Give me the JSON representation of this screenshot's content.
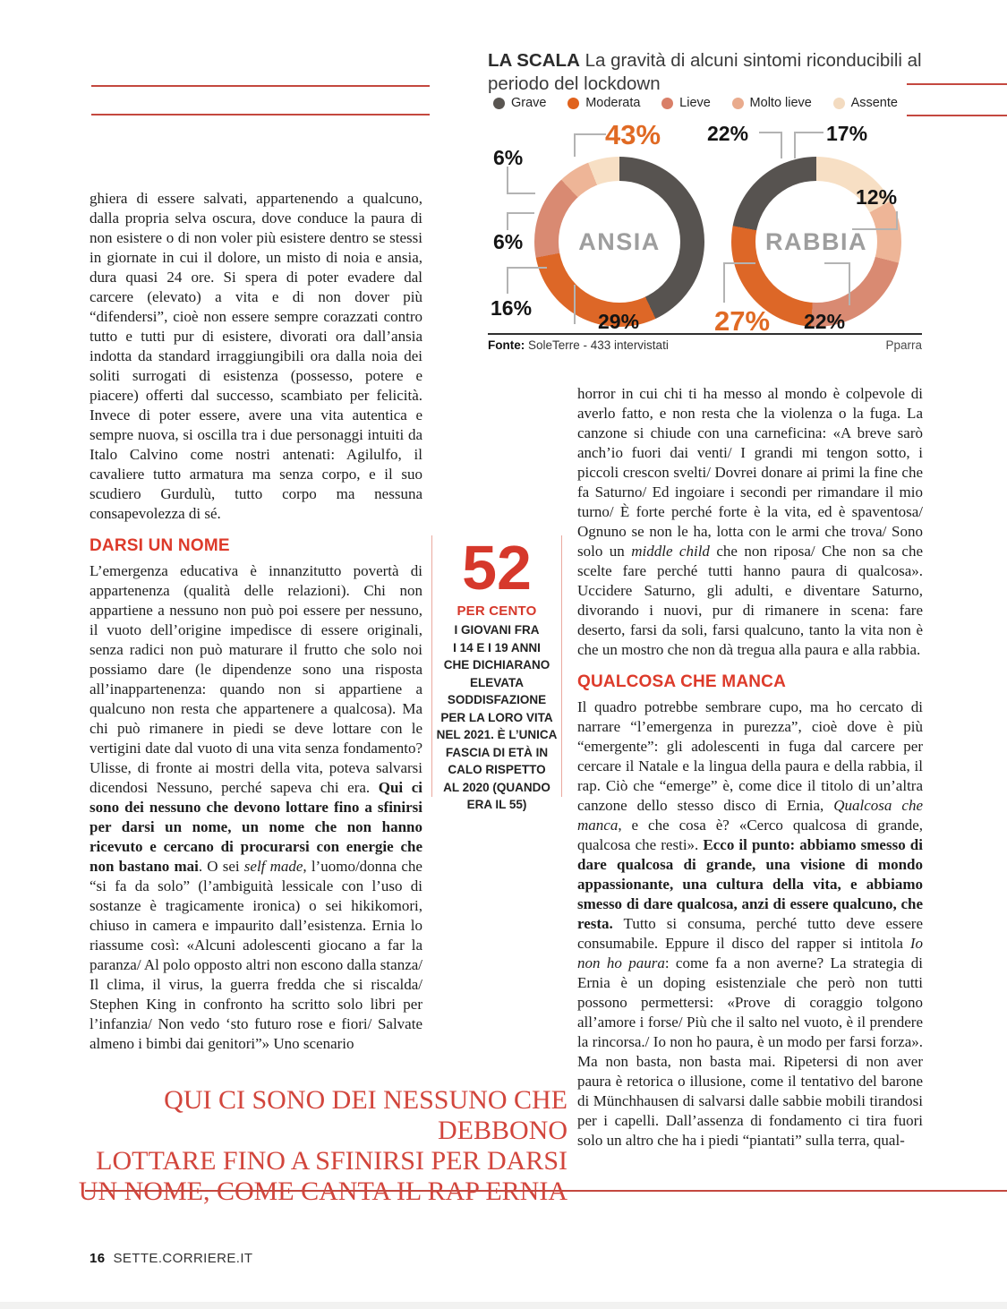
{
  "chart": {
    "title": "LA SCALA",
    "subtitle": "La gravità di alcuni sintomi riconducibili al periodo del lockdown",
    "legend": [
      {
        "label": "Grave",
        "color": "#595551"
      },
      {
        "label": "Moderata",
        "color": "#e0621c"
      },
      {
        "label": "Lieve",
        "color": "#d97f68"
      },
      {
        "label": "Molto lieve",
        "color": "#e9ab8d"
      },
      {
        "label": "Assente",
        "color": "#f3dbc0"
      }
    ],
    "source_label": "Fonte:",
    "source_text": " SoleTerre - 433 intervistati",
    "credit": "Pparra",
    "donut_labels": {
      "ansia": [
        "43%",
        "6%",
        "6%",
        "16%",
        "29%"
      ],
      "rabbia": [
        "22%",
        "17%",
        "12%",
        "22%",
        "27%"
      ]
    }
  },
  "chart_data": [
    {
      "type": "pie",
      "subtype": "donut",
      "title": "ANSIA",
      "categories": [
        "Grave",
        "Moderata",
        "Lieve",
        "Molto lieve",
        "Assente"
      ],
      "values": [
        43,
        29,
        16,
        6,
        6
      ],
      "colors": [
        "#575350",
        "#dd6727",
        "#d98a72",
        "#eeb597",
        "#f7dfc4"
      ],
      "clockwise_from_top": [
        "Grave",
        "Moderata",
        "Lieve",
        "Molto lieve",
        "Assente"
      ],
      "highlighted_value": "43%"
    },
    {
      "type": "pie",
      "subtype": "donut",
      "title": "RABBIA",
      "categories": [
        "Grave",
        "Moderata",
        "Lieve",
        "Molto lieve",
        "Assente"
      ],
      "values": [
        22,
        27,
        22,
        12,
        17
      ],
      "colors": [
        "#575350",
        "#dd6727",
        "#d98a72",
        "#eeb597",
        "#f7dfc4"
      ],
      "clockwise_from_top": [
        "Assente",
        "Molto lieve",
        "Lieve",
        "Moderata",
        "Grave"
      ],
      "highlighted_value": "27%"
    }
  ],
  "article": {
    "left_col": {
      "para1_runs": [
        {
          "t": "ghiera di essere salvati, appartenendo a qualcuno, dalla propria selva oscura, dove conduce la paura di non esistere o di non voler più esistere dentro se stessi in giornate in cui il dolore, un misto di noia e ansia, dura quasi 24 ore. Si spera di poter evadere dal carcere (elevato) a vita e di non dover più “difendersi”, cioè non essere sempre corazzati contro tutto e tutti pur di esistere, divorati ora dall’ansia indotta da standard irraggiungibili ora dalla noia dei soliti surrogati di esistenza (possesso, potere e piacere) offerti dal successo, scambiato per felicità. Invece di poter essere, avere una vita autentica e sempre nuova, si oscilla tra i due personaggi intuiti da Italo Calvino come nostri antenati: Agilulfo, il cavaliere tutto armatura ma senza corpo, e il suo scudiero Gurdulù, tutto corpo ma nessuna consapevolezza di sé."
        }
      ],
      "heading1": "DARSI UN NOME",
      "para2_runs": [
        {
          "t": "L’emergenza educativa è innanzitutto povertà di appartenenza (qualità delle relazioni). Chi non appartiene a nessuno non può poi essere per nessuno, il vuoto dell’origine impedisce di essere originali, senza radici non può maturare il frutto che solo noi possiamo dare (le dipendenze sono una risposta all’inappartenenza: quando non si appartiene a qualcuno non resta che appartenere a qualcosa). Ma chi può rimanere in piedi se deve lottare con le vertigini date dal vuoto di una vita senza fondamento? Ulisse, di fronte ai mostri della vita, poteva salvarsi dicendosi Nessuno, perché sapeva chi era. "
        },
        {
          "t": "Qui ci sono dei nessuno che devono lottare fino a sfinirsi per darsi un nome, un nome che non hanno ricevuto e cercano di procurarsi con energie che non bastano mai",
          "s": "b"
        },
        {
          "t": ". O sei "
        },
        {
          "t": "self made",
          "s": "i"
        },
        {
          "t": ", l’uomo/donna che “si fa da solo” (l’ambiguità lessicale con l’uso di sostanze è tragicamente ironica) o sei hikikomori, chiuso in camera e impaurito dall’esistenza. Ernia lo riassume così: «Alcuni adolescenti giocano a far la paranza/ Al polo opposto altri non escono dalla stanza/ Il clima, il virus, la guerra fredda che si riscalda/ Stephen King in confronto ha scritto solo libri per l’infanzia/ Non vedo ‘sto futuro rose e fiori/ Salvate almeno i bimbi dai genitori”» Uno scenario"
        }
      ]
    },
    "right_col": {
      "para1_runs": [
        {
          "t": "horror in cui chi ti ha messo al mondo è colpevole di averlo fatto, e non resta che la violenza o la fuga. La canzone si chiude con una carneficina: «A breve sarò anch’io fuori dai venti/ I grandi mi tengon sotto, i piccoli crescon svelti/ Dovrei donare ai primi la fine che fa Saturno/ Ed ingoiare i secondi per rimandare il mio turno/ È forte perché forte è la vita, ed è spaventosa/ Ognuno se non le ha, lotta con le armi che trova/ Sono solo un "
        },
        {
          "t": "middle child",
          "s": "i"
        },
        {
          "t": " che non riposa/ Che non sa che scelte fare perché tutti hanno paura di qualcosa». Uccidere Saturno, gli adulti, e diventare Saturno, divorando i nuovi, pur di rimanere in scena: fare deserto, farsi da soli, farsi qualcuno, tanto la vita non è che un mostro che non dà tregua alla paura e alla rabbia."
        }
      ],
      "heading2": "QUALCOSA CHE MANCA",
      "para2_runs": [
        {
          "t": "Il quadro potrebbe sembrare cupo, ma ho cercato di narrare “l’emergenza in purezza”, cioè dove è più “emergente”: gli adolescenti in fuga dal carcere per cercare il Natale e la lingua della paura e della rabbia, il rap. Ciò che “emerge” è, come dice il titolo di un’altra canzone dello stesso disco di Ernia, "
        },
        {
          "t": "Qualcosa che manca",
          "s": "i"
        },
        {
          "t": ", e che cosa è? «Cerco qualcosa di grande, qualcosa che resti». "
        },
        {
          "t": "Ecco il punto: abbiamo smesso di dare qualcosa di grande, una visione di mondo appassionante, una cultura della vita, e abbiamo smesso di dare qualcosa, anzi di essere qualcuno, che resta.",
          "s": "b"
        },
        {
          "t": " Tutto si consuma, perché tutto deve essere consumabile. Eppure il disco del rapper si intitola "
        },
        {
          "t": "Io non ho paura",
          "s": "i"
        },
        {
          "t": ": come fa a non averne? La strategia di Ernia è un doping esistenziale che però non tutti possono permettersi: «Prove di coraggio tolgono all’amore i forse/ Più che il salto nel vuoto, è il prendere la rincorsa./ Io non ho paura, è un modo per farsi forza». Ma non basta, non basta mai. Ripetersi di non aver paura è retorica o illusione, come il tentativo del barone di Münchhausen di salvarsi dalle sabbie mobili tirandosi per i capelli. Dall’assenza di fondamento ci tira fuori solo un altro che ha i piedi “piantati” sulla terra, qual-"
        }
      ]
    },
    "callout": {
      "number": "52",
      "unit": "PER CENTO",
      "caption": "I GIOVANI FRA\nI 14 E I 19 ANNI\nCHE DICHIARANO\nELEVATA\nSODDISFAZIONE\nPER LA LORO VITA\nNEL 2021. È L’UNICA\nFASCIA DI ETÀ IN\nCALO RISPETTO\nAL 2020 (QUANDO\nERA IL 55)"
    },
    "pull_quote": "QUI CI SONO DEI NESSUNO CHE DEBBONO\nLOTTARE FINO A SFINIRSI PER DARSI\nUN NOME, COME CANTA IL RAP ERNIA"
  },
  "footer": {
    "page_number": "16",
    "site": "SETTE.CORRIERE.IT"
  }
}
